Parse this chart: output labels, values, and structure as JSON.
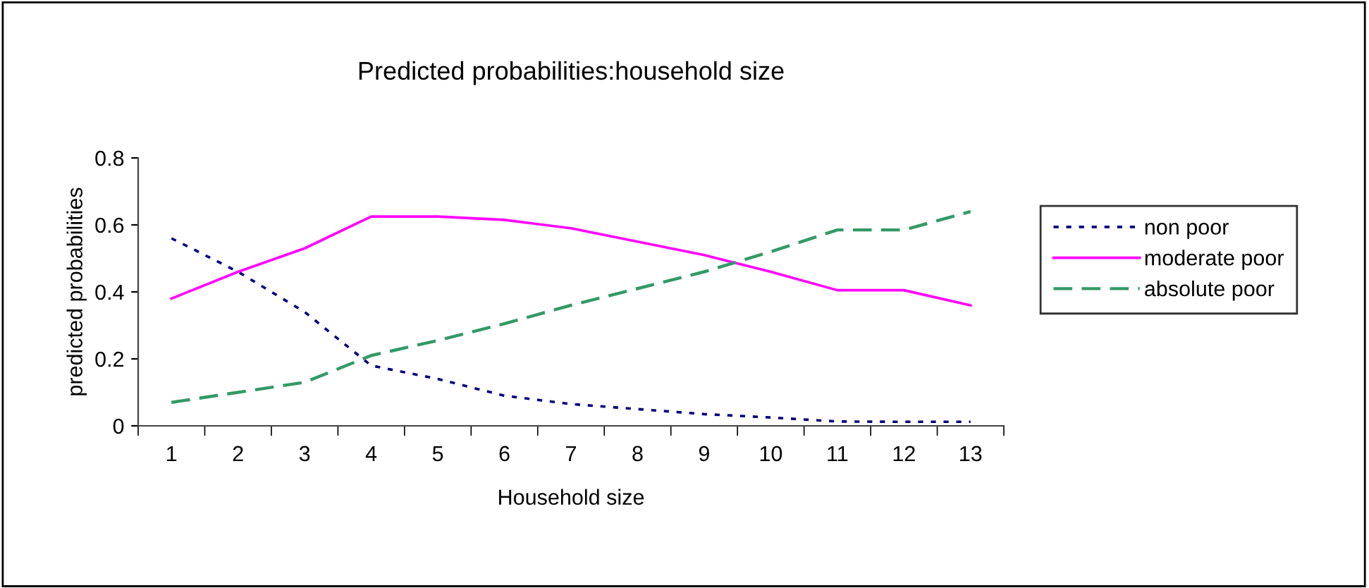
{
  "chart_data": {
    "type": "line",
    "title": "Predicted probabilities:household size",
    "xlabel": "Household size",
    "ylabel": "predicted probabilities",
    "categories": [
      "1",
      "2",
      "3",
      "4",
      "5",
      "6",
      "7",
      "8",
      "9",
      "10",
      "11",
      "12",
      "13"
    ],
    "series": [
      {
        "name": "non poor",
        "color": "#000080",
        "line_style": "dotted",
        "values": [
          0.56,
          0.46,
          0.34,
          0.18,
          0.14,
          0.09,
          0.065,
          0.05,
          0.035,
          0.025,
          0.013,
          0.012,
          0.012
        ]
      },
      {
        "name": "moderate poor",
        "color": "#ff00ff",
        "line_style": "solid",
        "values": [
          0.38,
          0.46,
          0.53,
          0.625,
          0.625,
          0.615,
          0.59,
          0.55,
          0.51,
          0.46,
          0.405,
          0.405,
          0.36
        ]
      },
      {
        "name": "absolute poor",
        "color": "#339966",
        "line_style": "dashed",
        "values": [
          0.07,
          0.1,
          0.13,
          0.21,
          0.255,
          0.305,
          0.36,
          0.41,
          0.46,
          0.52,
          0.585,
          0.585,
          0.64
        ]
      }
    ],
    "ylim": [
      0,
      0.8
    ],
    "yticks": [
      {
        "value": 0,
        "label": "0"
      },
      0.2,
      0.4,
      0.6,
      0.8
    ],
    "grid": false,
    "legend": "right",
    "marker": "none"
  }
}
